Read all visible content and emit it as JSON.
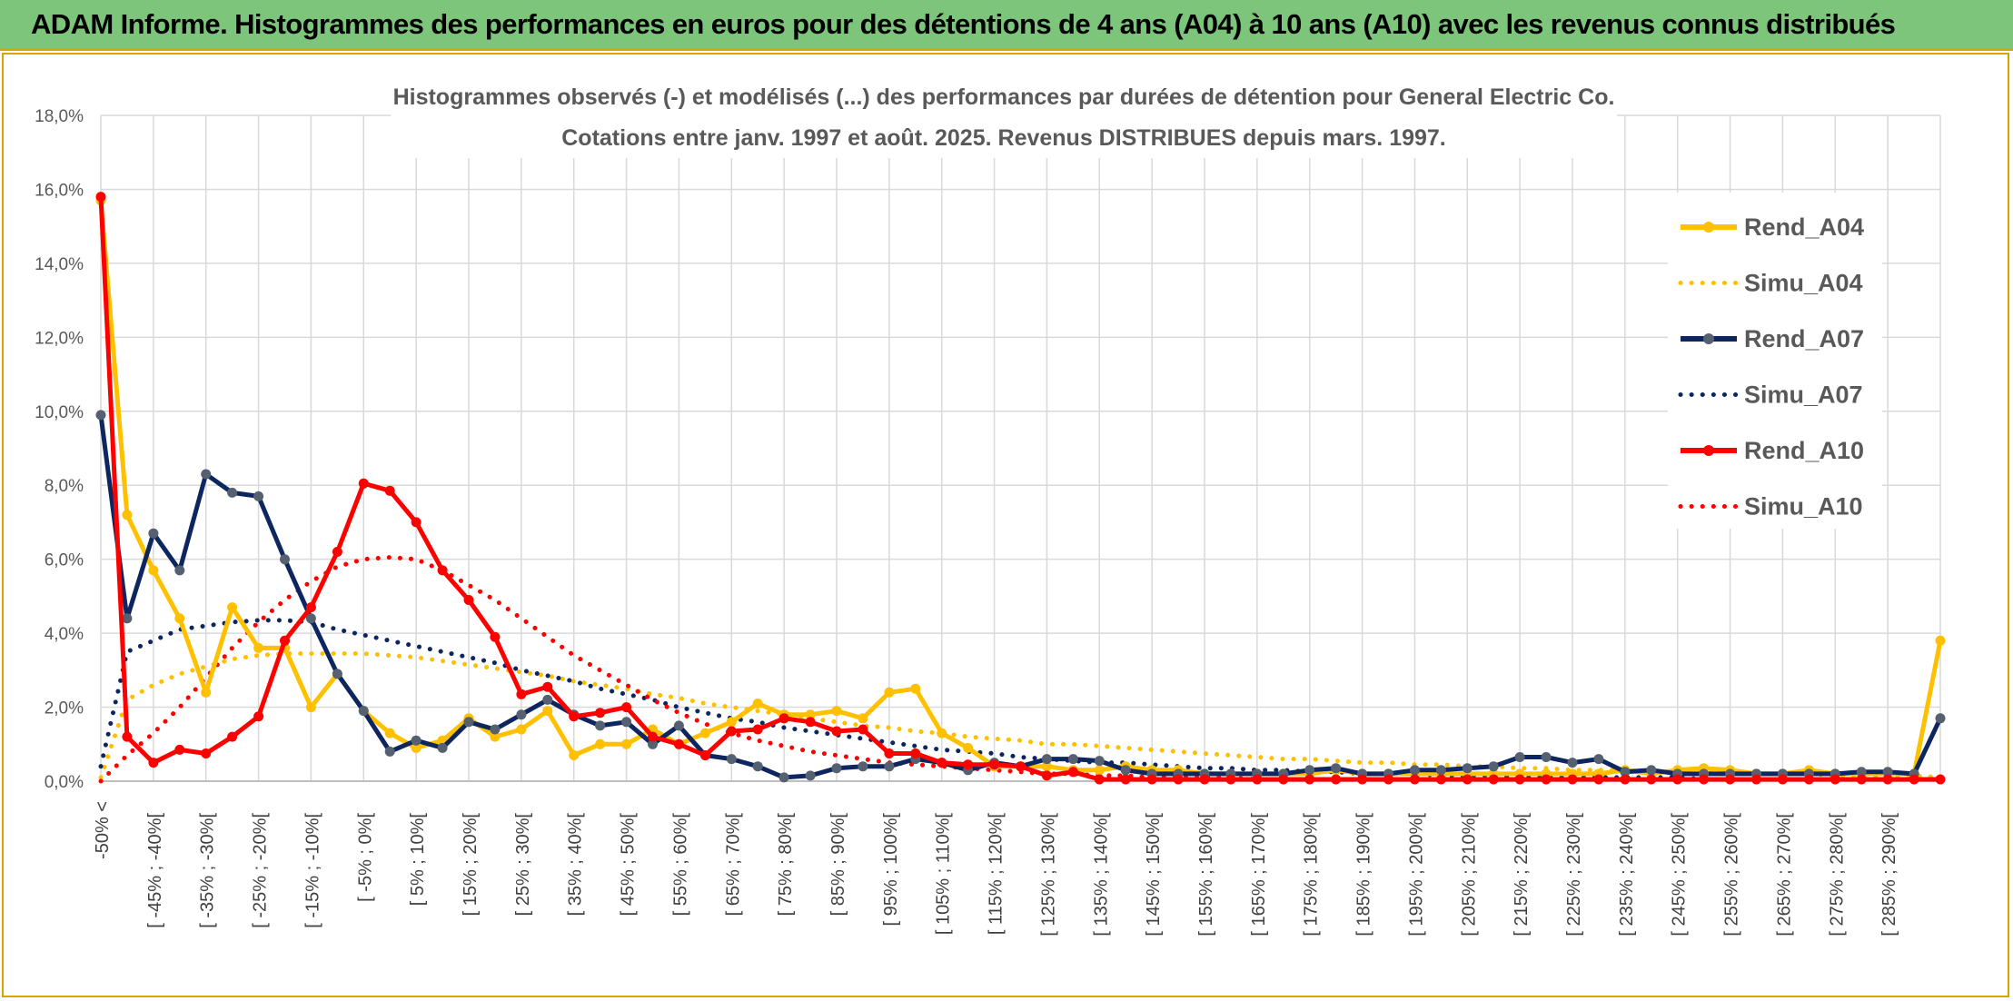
{
  "banner": {
    "title": "ADAM Informe. Histogrammes des performances en euros pour des détentions de 4 ans (A04) à 10 ans (A10) avec les revenus connus distribués"
  },
  "chart_data": {
    "type": "line",
    "title": "Histogrammes observés (-) et modélisés (...) des performances par durées de détention pour General Electric Co.",
    "subtitle": "Cotations entre janv. 1997 et août. 2025. Revenus DISTRIBUES depuis mars. 1997.",
    "xlabel": "",
    "ylabel": "",
    "ylim": [
      0,
      18
    ],
    "yticks": [
      "0,0%",
      "2,0%",
      "4,0%",
      "6,0%",
      "8,0%",
      "10,0%",
      "12,0%",
      "14,0%",
      "16,0%",
      "18,0%"
    ],
    "grid": true,
    "legend_position": "top-right",
    "categories": [
      "-50% <",
      "[ -50% ; -45%[",
      "[ -45% ; -40%[",
      "[ -40% ; -35%[",
      "[ -35% ; -30%[",
      "[ -30% ; -25%[",
      "[ -25% ; -20%[",
      "[ -20% ; -15%[",
      "[ -15% ; -10%[",
      "[ -10% ; -5%[",
      "[ -5% ; 0%[",
      "[ 0% ; 5%[",
      "[ 5% ; 10%[",
      "[ 10% ; 15%[",
      "[ 15% ; 20%[",
      "[ 20% ; 25%[",
      "[ 25% ; 30%[",
      "[ 30% ; 35%[",
      "[ 35% ; 40%[",
      "[ 40% ; 45%[",
      "[ 45% ; 50%[",
      "[ 50% ; 55%[",
      "[ 55% ; 60%[",
      "[ 60% ; 65%[",
      "[ 65% ; 70%[",
      "[ 70% ; 75%[",
      "[ 75% ; 80%[",
      "[ 80% ; 85%[",
      "[ 85% ; 90%[",
      "[ 90% ; 95%[",
      "[ 95% ; 100%[",
      "[ 100% ; 105%[",
      "[ 105% ; 110%[",
      "[ 110% ; 115%[",
      "[ 115% ; 120%[",
      "[ 120% ; 125%[",
      "[ 125% ; 130%[",
      "[ 130% ; 135%[",
      "[ 135% ; 140%[",
      "[ 140% ; 145%[",
      "[ 145% ; 150%[",
      "[ 150% ; 155%[",
      "[ 155% ; 160%[",
      "[ 160% ; 165%[",
      "[ 165% ; 170%[",
      "[ 170% ; 175%[",
      "[ 175% ; 180%[",
      "[ 180% ; 185%[",
      "[ 185% ; 190%[",
      "[ 190% ; 195%[",
      "[ 195% ; 200%[",
      "[ 200% ; 205%[",
      "[ 205% ; 210%[",
      "[ 210% ; 215%[",
      "[ 215% ; 220%[",
      "[ 220% ; 225%[",
      "[ 225% ; 230%[",
      "[ 230% ; 235%[",
      "[ 235% ; 240%[",
      "[ 240% ; 245%[",
      "[ 245% ; 250%[",
      "[ 250% ; 255%[",
      "[ 255% ; 260%[",
      "[ 260% ; 265%[",
      "[ 265% ; 270%[",
      "[ 270% ; 275%[",
      "[ 275% ; 280%[",
      "[ 280% ; 285%[",
      "[ 285% ; 290%[",
      "[ 290% ; 295%[",
      "[ 295% ; 300%["
    ],
    "visible_xticks": [
      "-50% <",
      "[ -45% ; -40%[",
      "[ -35% ; -30%[",
      "[ -25% ; -20%[",
      "[ -15% ; -10%[",
      "[ -5% ; 0%[",
      "[ 5% ; 10%[",
      "[ 15% ; 20%[",
      "[ 25% ; 30%[",
      "[ 35% ; 40%[",
      "[ 45% ; 50%[",
      "[ 55% ; 60%[",
      "[ 65% ; 70%[",
      "[ 75% ; 80%[",
      "[ 85% ; 90%[",
      "[ 95% ; 100%[",
      "[ 105% ; 110%[",
      "[ 115% ; 120%[",
      "[ 125% ; 130%[",
      "[ 135% ; 140%[",
      "[ 145% ; 150%[",
      "[ 155% ; 160%[",
      "[ 165% ; 170%[",
      "[ 175% ; 180%[",
      "[ 185% ; 190%[",
      "[ 195% ; 200%[",
      "[ 205% ; 210%[",
      "[ 215% ; 220%[",
      "[ 225% ; 230%[",
      "[ 235% ; 240%[",
      "[ 245% ; 250%[",
      "[ 255% ; 260%[",
      "[ 265% ; 270%[",
      "[ 275% ; 280%[",
      "[ 285% ; 290%["
    ],
    "series": [
      {
        "name": "Rend_A04",
        "style": "solid",
        "color": "#ffc000",
        "values": [
          15.7,
          7.2,
          5.7,
          4.4,
          2.4,
          4.7,
          3.6,
          3.6,
          2.0,
          2.9,
          1.9,
          1.3,
          0.9,
          1.1,
          1.7,
          1.2,
          1.4,
          1.9,
          0.7,
          1.0,
          1.0,
          1.4,
          1.0,
          1.3,
          1.6,
          2.1,
          1.8,
          1.8,
          1.9,
          1.7,
          2.4,
          2.5,
          1.3,
          0.9,
          0.4,
          0.4,
          0.4,
          0.3,
          0.3,
          0.4,
          0.3,
          0.3,
          0.2,
          0.2,
          0.2,
          0.2,
          0.2,
          0.3,
          0.2,
          0.2,
          0.2,
          0.2,
          0.2,
          0.2,
          0.2,
          0.2,
          0.2,
          0.2,
          0.3,
          0.2,
          0.3,
          0.35,
          0.3,
          0.2,
          0.2,
          0.3,
          0.2,
          0.2,
          0.2,
          0.2,
          3.8
        ]
      },
      {
        "name": "Simu_A04",
        "style": "dotted",
        "color": "#ffc000",
        "values": [
          0.1,
          2.2,
          2.6,
          2.9,
          3.1,
          3.3,
          3.4,
          3.45,
          3.45,
          3.45,
          3.45,
          3.4,
          3.35,
          3.25,
          3.15,
          3.05,
          2.95,
          2.85,
          2.7,
          2.6,
          2.5,
          2.35,
          2.25,
          2.1,
          2.0,
          1.9,
          1.8,
          1.7,
          1.6,
          1.5,
          1.45,
          1.35,
          1.3,
          1.2,
          1.15,
          1.1,
          1.0,
          1.0,
          0.95,
          0.9,
          0.85,
          0.8,
          0.75,
          0.7,
          0.65,
          0.6,
          0.6,
          0.55,
          0.5,
          0.5,
          0.45,
          0.45,
          0.4,
          0.4,
          0.35,
          0.35,
          0.3,
          0.3,
          0.3,
          0.25,
          0.25,
          0.25,
          0.2,
          0.2,
          0.2,
          0.2,
          0.15,
          0.15,
          0.15,
          0.15,
          0.1
        ]
      },
      {
        "name": "Rend_A07",
        "style": "solid",
        "color": "#0e2660",
        "values": [
          9.9,
          4.4,
          6.7,
          5.7,
          8.3,
          7.8,
          7.7,
          6.0,
          4.4,
          2.9,
          1.9,
          0.8,
          1.1,
          0.9,
          1.6,
          1.4,
          1.8,
          2.2,
          1.8,
          1.5,
          1.6,
          1.0,
          1.5,
          0.7,
          0.6,
          0.4,
          0.1,
          0.15,
          0.35,
          0.4,
          0.4,
          0.6,
          0.5,
          0.3,
          0.5,
          0.4,
          0.6,
          0.6,
          0.55,
          0.3,
          0.2,
          0.2,
          0.2,
          0.2,
          0.2,
          0.2,
          0.3,
          0.35,
          0.2,
          0.2,
          0.3,
          0.3,
          0.35,
          0.4,
          0.65,
          0.65,
          0.5,
          0.6,
          0.25,
          0.3,
          0.2,
          0.2,
          0.2,
          0.2,
          0.2,
          0.2,
          0.2,
          0.25,
          0.25,
          0.2,
          1.7
        ]
      },
      {
        "name": "Simu_A07",
        "style": "dotted",
        "color": "#0e2660",
        "values": [
          0.4,
          3.5,
          3.8,
          4.1,
          4.2,
          4.3,
          4.35,
          4.35,
          4.3,
          4.1,
          3.95,
          3.8,
          3.65,
          3.5,
          3.35,
          3.2,
          3.0,
          2.85,
          2.7,
          2.5,
          2.35,
          2.2,
          2.0,
          1.85,
          1.7,
          1.6,
          1.45,
          1.35,
          1.25,
          1.15,
          1.05,
          0.95,
          0.85,
          0.8,
          0.75,
          0.65,
          0.6,
          0.55,
          0.5,
          0.5,
          0.45,
          0.4,
          0.35,
          0.35,
          0.3,
          0.3,
          0.25,
          0.25,
          0.2,
          0.2,
          0.2,
          0.15,
          0.15,
          0.15,
          0.1,
          0.1,
          0.1,
          0.1,
          0.1,
          0.1,
          0.1,
          0.05,
          0.05,
          0.05,
          0.05,
          0.05,
          0.05,
          0.05,
          0.05,
          0.05,
          0.05
        ]
      },
      {
        "name": "Rend_A10",
        "style": "solid",
        "color": "#ff0000",
        "values": [
          15.8,
          1.2,
          0.5,
          0.85,
          0.75,
          1.2,
          1.75,
          3.8,
          4.7,
          6.2,
          8.05,
          7.85,
          7.0,
          5.7,
          4.9,
          3.9,
          2.35,
          2.55,
          1.75,
          1.85,
          2.0,
          1.2,
          1.0,
          0.7,
          1.35,
          1.4,
          1.7,
          1.6,
          1.35,
          1.4,
          0.75,
          0.75,
          0.5,
          0.45,
          0.45,
          0.4,
          0.15,
          0.25,
          0.05,
          0.05,
          0.05,
          0.05,
          0.05,
          0.05,
          0.05,
          0.05,
          0.05,
          0.05,
          0.05,
          0.05,
          0.05,
          0.05,
          0.05,
          0.05,
          0.05,
          0.05,
          0.05,
          0.05,
          0.05,
          0.05,
          0.05,
          0.05,
          0.05,
          0.05,
          0.05,
          0.05,
          0.05,
          0.05,
          0.05,
          0.05,
          0.05
        ]
      },
      {
        "name": "Simu_A10",
        "style": "dotted",
        "color": "#ff0000",
        "values": [
          0.0,
          0.7,
          1.3,
          2.0,
          2.8,
          3.6,
          4.3,
          4.9,
          5.4,
          5.8,
          6.0,
          6.05,
          6.0,
          5.7,
          5.3,
          4.9,
          4.4,
          3.9,
          3.4,
          3.0,
          2.6,
          2.2,
          1.85,
          1.55,
          1.3,
          1.1,
          0.95,
          0.8,
          0.7,
          0.6,
          0.5,
          0.45,
          0.4,
          0.35,
          0.3,
          0.25,
          0.2,
          0.2,
          0.15,
          0.15,
          0.1,
          0.1,
          0.1,
          0.1,
          0.05,
          0.05,
          0.05,
          0.05,
          0.05,
          0.05,
          0.05,
          0.05,
          0.05,
          0.05,
          0.05,
          0.05,
          0.05,
          0.05,
          0.05,
          0.05,
          0.05,
          0.05,
          0.05,
          0.05,
          0.05,
          0.05,
          0.05,
          0.05,
          0.05,
          0.05,
          0.05
        ]
      }
    ]
  }
}
